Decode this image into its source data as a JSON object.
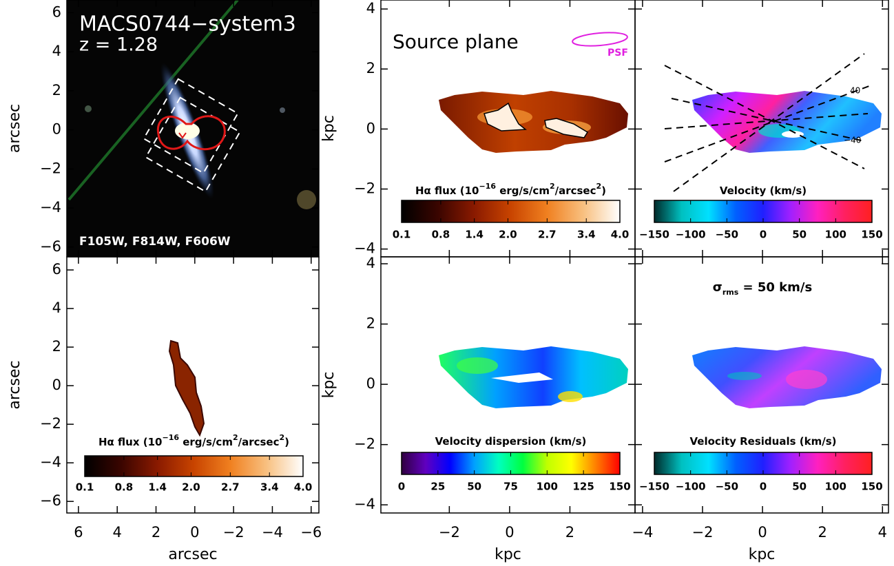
{
  "panels": [
    {
      "title": "MACS0744−system3",
      "subtitle": "z = 1.28",
      "note": "F105W, F814W, F606W",
      "ylabel": "arcsec",
      "xlim": [
        6.6,
        -6.4
      ],
      "ylim": [
        -6.5,
        6.65
      ],
      "xticks": [
        6,
        4,
        2,
        0,
        {
          "value": -2,
          "label": "−2"
        },
        {
          "value": -4,
          "label": "−4"
        },
        {
          "value": -6,
          "label": "−6"
        }
      ],
      "yticks": [
        6,
        4,
        2,
        0,
        {
          "value": -2,
          "label": "−2"
        },
        {
          "value": -4,
          "label": "−4"
        },
        {
          "value": -6,
          "label": "−6"
        }
      ]
    },
    {
      "xlabel": "arcsec",
      "ylabel": "arcsec",
      "xlim": [
        6.6,
        -6.4
      ],
      "ylim": [
        -6.6,
        6.68
      ],
      "xticks": [
        6,
        4,
        2,
        0,
        {
          "value": -2,
          "label": "−2"
        },
        {
          "value": -4,
          "label": "−4"
        },
        {
          "value": -6,
          "label": "−6"
        }
      ],
      "yticks": [
        6,
        4,
        2,
        0,
        {
          "value": -2,
          "label": "−2"
        },
        {
          "value": -4,
          "label": "−4"
        },
        {
          "value": -6,
          "label": "−6"
        }
      ],
      "colorbar": {
        "label": [
          "Hα flux (10",
          "−16",
          " erg/s/cm",
          "2",
          "/arcsec",
          "2",
          ")"
        ],
        "lim": [
          0.1,
          4.0
        ],
        "ticks": [
          0.1,
          0.8,
          1.4,
          {
            "value": 2.0,
            "label": "2.0"
          },
          2.7,
          3.4,
          {
            "value": 4.0,
            "label": "4.0"
          }
        ],
        "colors": [
          "#000000",
          "#3a0500",
          "#8a1a00",
          "#c84400",
          "#f08020",
          "#f8c080",
          "#ffffff"
        ]
      }
    },
    {
      "title": "Source plane",
      "psf": "PSF",
      "ylabel": "kpc",
      "xlim": [
        -4.27,
        4.16
      ],
      "ylim": [
        -4.26,
        4.3
      ],
      "xticks": [
        {
          "value": -2,
          "label": "−2"
        },
        0,
        2
      ],
      "yticks": [
        4,
        2,
        0,
        {
          "value": -2,
          "label": "−2"
        },
        {
          "value": -4,
          "label": "−4"
        }
      ],
      "colorbar": {
        "label": [
          "Hα flux (10",
          "−16",
          " erg/s/cm",
          "2",
          "/arcsec",
          "2",
          ")"
        ],
        "lim": [
          0.1,
          4.0
        ],
        "ticks": [
          0.1,
          0.8,
          1.4,
          {
            "value": 2.0,
            "label": "2.0"
          },
          2.7,
          3.4,
          {
            "value": 4.0,
            "label": "4.0"
          }
        ],
        "colors": [
          "#000000",
          "#3a0500",
          "#8a1a00",
          "#c84400",
          "#f08020",
          "#f8c080",
          "#ffffff"
        ]
      }
    },
    {
      "contour_labels": [
        "40",
        "−40"
      ],
      "xlim": [
        -4.25,
        4.2
      ],
      "ylim": [
        -4.26,
        4.3
      ],
      "xticks": [
        {
          "value": -4,
          "label": "−4"
        },
        {
          "value": -2,
          "label": "−2"
        },
        0,
        2,
        4
      ],
      "yticks": [
        4,
        2,
        0,
        {
          "value": -2,
          "label": "−2"
        },
        {
          "value": -4,
          "label": "−4"
        }
      ],
      "colorbar": {
        "label": [
          "Velocity (km/s)"
        ],
        "lim": [
          -150,
          150
        ],
        "ticks": [
          {
            "value": -150,
            "label": "−150"
          },
          {
            "value": -100,
            "label": "−100"
          },
          {
            "value": -50,
            "label": "−50"
          },
          0,
          50,
          100,
          150
        ],
        "colors": [
          "#002a2a",
          "#00c0c0",
          "#00e0ff",
          "#0060ff",
          "#2020ff",
          "#a020ff",
          "#ff20c0",
          "#ff2060",
          "#ff2020"
        ]
      }
    },
    {
      "xlabel": "kpc",
      "ylabel": "kpc",
      "xlim": [
        -4.27,
        4.16
      ],
      "ylim": [
        -4.27,
        4.23
      ],
      "xticks": [
        {
          "value": -2,
          "label": "−2"
        },
        0,
        2
      ],
      "yticks": [
        4,
        2,
        0,
        {
          "value": -2,
          "label": "−2"
        },
        {
          "value": -4,
          "label": "−4"
        }
      ],
      "colorbar": {
        "label": [
          "Velocity dispersion (km/s)"
        ],
        "lim": [
          0,
          150
        ],
        "ticks": [
          0,
          25,
          50,
          75,
          100,
          125,
          150
        ],
        "colors": [
          "#300040",
          "#6000c0",
          "#0000ff",
          "#00a0ff",
          "#00ffc0",
          "#00ff40",
          "#c0ff00",
          "#ffff00",
          "#ff8000",
          "#ff0000"
        ]
      }
    },
    {
      "xlabel": "kpc",
      "note": [
        "σ",
        "rms",
        " = 50 km/s"
      ],
      "xlim": [
        -4.25,
        4.2
      ],
      "ylim": [
        -4.27,
        4.23
      ],
      "xticks": [
        {
          "value": -4,
          "label": "−4"
        },
        {
          "value": -2,
          "label": "−2"
        },
        0,
        2,
        4
      ],
      "yticks": [
        4,
        2,
        0,
        {
          "value": -2,
          "label": "−2"
        },
        {
          "value": -4,
          "label": "−4"
        }
      ],
      "colorbar": {
        "label": [
          "Velocity Residuals (km/s)"
        ],
        "lim": [
          -150,
          150
        ],
        "ticks": [
          {
            "value": -150,
            "label": "−150"
          },
          {
            "value": -100,
            "label": "−100"
          },
          {
            "value": -50,
            "label": "−50"
          },
          0,
          50,
          100,
          150
        ],
        "colors": [
          "#002a2a",
          "#00c0c0",
          "#00e0ff",
          "#0060ff",
          "#2020ff",
          "#a020ff",
          "#ff20c0",
          "#ff2060",
          "#ff2020"
        ]
      }
    }
  ]
}
